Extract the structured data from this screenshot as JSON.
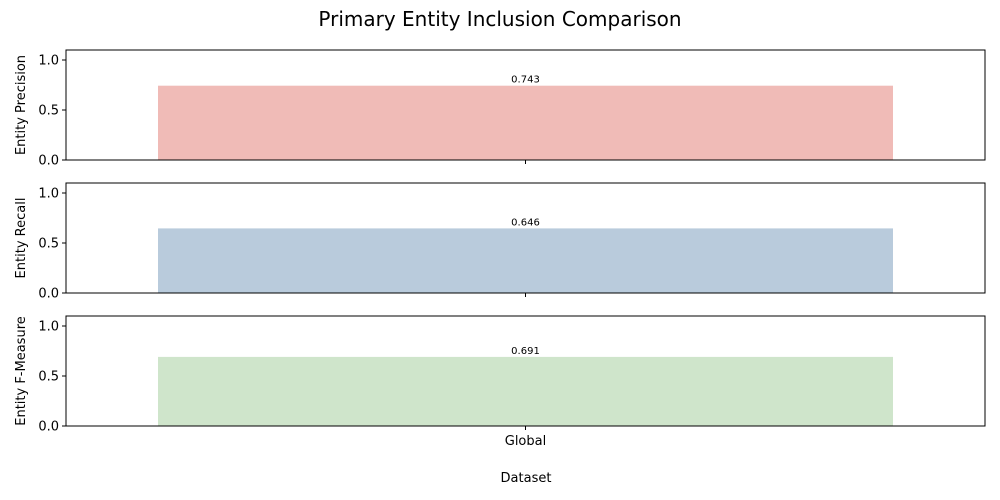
{
  "chart_data": {
    "type": "bar",
    "title": "Primary Entity Inclusion Comparison",
    "xlabel": "Dataset",
    "categories": [
      "Global"
    ],
    "ylim": [
      0,
      1.1
    ],
    "yticks": [
      "0.0",
      "0.5",
      "1.0"
    ],
    "grid": false,
    "panels": [
      {
        "ylabel": "Entity Precision",
        "values": [
          0.743
        ],
        "value_label": "0.743",
        "color": "#f0bbb7"
      },
      {
        "ylabel": "Entity Recall",
        "values": [
          0.646
        ],
        "value_label": "0.646",
        "color": "#b9cbdc"
      },
      {
        "ylabel": "Entity F-Measure",
        "values": [
          0.691
        ],
        "value_label": "0.691",
        "color": "#cfe5cb"
      }
    ]
  }
}
